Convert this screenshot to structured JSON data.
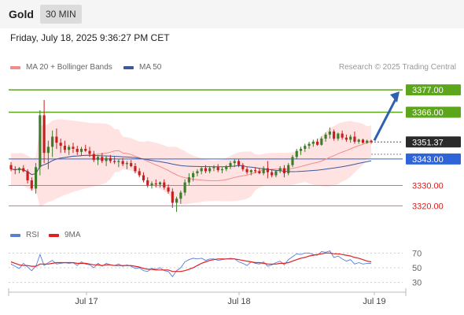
{
  "header": {
    "instrument": "Gold",
    "timeframe": "30 MIN"
  },
  "datetime": "Friday, July 18, 2025 9:36:27 PM CET",
  "credit": "Research © 2025 Trading Central",
  "legend": {
    "ma20": {
      "label": "MA 20 + Bollinger Bands",
      "color": "#f28b8b"
    },
    "ma50": {
      "label": "MA 50",
      "color": "#3a5a9c"
    },
    "rsi": {
      "label": "RSI",
      "color": "#5b7fd6"
    },
    "ma9": {
      "label": "9MA",
      "color": "#e02020"
    }
  },
  "colors": {
    "up": "#3b7d2a",
    "down": "#c81e1e",
    "band_fill": "#ffdede",
    "resistance": "#5ea51e",
    "support": "#e06d7f",
    "current": "#2a2a2a",
    "pivot": "#2f64d8",
    "arrow": "#2e62b0"
  },
  "chart_data": [
    {
      "type": "candlestick",
      "x_ticks": [
        "Jul 17",
        "Jul 18",
        "Jul 19"
      ],
      "ylim": [
        3312,
        3384
      ],
      "levels": [
        {
          "value": 3377.0,
          "label": "3377.00",
          "kind": "resistance"
        },
        {
          "value": 3366.0,
          "label": "3366.00",
          "kind": "resistance"
        },
        {
          "value": 3351.37,
          "label": "3351.37",
          "kind": "current"
        },
        {
          "value": 3343.0,
          "label": "3343.00",
          "kind": "pivot"
        },
        {
          "value": 3330.0,
          "label": "3330.00",
          "kind": "support"
        },
        {
          "value": 3320.0,
          "label": "3320.00",
          "kind": "support"
        }
      ],
      "arrow": {
        "from": 3351.37,
        "to": 3377.0
      },
      "candles": [
        [
          3340.0,
          3341.5,
          3337.0,
          3338.0
        ],
        [
          3338.0,
          3339.5,
          3335.5,
          3337.5
        ],
        [
          3337.5,
          3339.0,
          3336.0,
          3338.5
        ],
        [
          3338.5,
          3340.0,
          3336.5,
          3337.0
        ],
        [
          3337.0,
          3338.0,
          3331.0,
          3332.5
        ],
        [
          3332.5,
          3334.0,
          3327.5,
          3328.5
        ],
        [
          3328.5,
          3341.0,
          3326.0,
          3339.0
        ],
        [
          3339.0,
          3367.0,
          3335.0,
          3364.5
        ],
        [
          3364.5,
          3372.0,
          3341.0,
          3346.0
        ],
        [
          3346.0,
          3352.0,
          3338.0,
          3349.0
        ],
        [
          3349.0,
          3357.0,
          3344.0,
          3354.0
        ],
        [
          3354.0,
          3358.0,
          3348.0,
          3351.0
        ],
        [
          3351.0,
          3353.0,
          3346.0,
          3349.5
        ],
        [
          3349.5,
          3352.0,
          3346.0,
          3347.5
        ],
        [
          3347.5,
          3350.0,
          3345.0,
          3349.0
        ],
        [
          3349.0,
          3351.0,
          3346.0,
          3348.0
        ],
        [
          3348.0,
          3349.5,
          3345.0,
          3346.5
        ],
        [
          3346.5,
          3349.0,
          3344.5,
          3348.0
        ],
        [
          3348.0,
          3350.0,
          3346.5,
          3347.0
        ],
        [
          3347.0,
          3349.0,
          3344.0,
          3345.5
        ],
        [
          3345.5,
          3347.0,
          3341.5,
          3342.5
        ],
        [
          3342.5,
          3345.0,
          3340.0,
          3344.0
        ],
        [
          3344.0,
          3346.0,
          3341.0,
          3342.0
        ],
        [
          3342.0,
          3344.5,
          3339.5,
          3343.5
        ],
        [
          3343.5,
          3345.0,
          3341.0,
          3342.0
        ],
        [
          3342.0,
          3344.0,
          3340.5,
          3341.5
        ],
        [
          3341.5,
          3343.0,
          3339.0,
          3342.0
        ],
        [
          3342.0,
          3343.5,
          3339.5,
          3340.5
        ],
        [
          3340.5,
          3342.0,
          3338.0,
          3341.0
        ],
        [
          3341.0,
          3342.5,
          3339.0,
          3339.5
        ],
        [
          3339.5,
          3341.0,
          3336.0,
          3337.0
        ],
        [
          3337.0,
          3338.5,
          3334.0,
          3335.0
        ],
        [
          3335.0,
          3336.5,
          3331.5,
          3332.5
        ],
        [
          3332.5,
          3334.0,
          3329.0,
          3330.0
        ],
        [
          3330.0,
          3332.0,
          3328.5,
          3331.0
        ],
        [
          3331.0,
          3333.0,
          3329.0,
          3330.5
        ],
        [
          3330.5,
          3332.0,
          3329.0,
          3331.5
        ],
        [
          3331.5,
          3333.0,
          3328.0,
          3329.0
        ],
        [
          3329.0,
          3330.5,
          3326.0,
          3327.0
        ],
        [
          3327.0,
          3328.5,
          3319.0,
          3321.5
        ],
        [
          3321.5,
          3324.5,
          3317.0,
          3323.5
        ],
        [
          3323.5,
          3327.5,
          3321.0,
          3326.5
        ],
        [
          3326.5,
          3333.0,
          3325.0,
          3331.5
        ],
        [
          3331.5,
          3336.0,
          3330.0,
          3334.0
        ],
        [
          3334.0,
          3337.0,
          3332.0,
          3336.0
        ],
        [
          3336.0,
          3338.0,
          3334.5,
          3337.0
        ],
        [
          3337.0,
          3339.0,
          3335.5,
          3338.5
        ],
        [
          3338.5,
          3340.0,
          3336.0,
          3337.0
        ],
        [
          3337.0,
          3339.5,
          3336.0,
          3338.5
        ],
        [
          3338.5,
          3340.0,
          3337.0,
          3339.0
        ],
        [
          3339.0,
          3340.5,
          3336.5,
          3337.5
        ],
        [
          3337.5,
          3339.0,
          3336.0,
          3338.0
        ],
        [
          3338.0,
          3340.0,
          3337.0,
          3339.5
        ],
        [
          3339.5,
          3342.0,
          3338.0,
          3341.0
        ],
        [
          3341.0,
          3343.0,
          3339.0,
          3342.0
        ],
        [
          3342.0,
          3343.0,
          3339.0,
          3340.0
        ],
        [
          3340.0,
          3341.0,
          3337.0,
          3338.0
        ],
        [
          3338.0,
          3339.0,
          3335.5,
          3336.5
        ],
        [
          3336.5,
          3338.0,
          3335.0,
          3337.5
        ],
        [
          3337.5,
          3339.0,
          3336.0,
          3337.0
        ],
        [
          3337.0,
          3338.5,
          3335.5,
          3336.0
        ],
        [
          3336.0,
          3339.5,
          3335.0,
          3338.5
        ],
        [
          3338.5,
          3342.0,
          3333.5,
          3336.5
        ],
        [
          3336.5,
          3338.0,
          3334.0,
          3335.0
        ],
        [
          3335.0,
          3337.5,
          3334.0,
          3337.0
        ],
        [
          3337.0,
          3339.5,
          3336.0,
          3338.5
        ],
        [
          3338.5,
          3340.0,
          3334.0,
          3336.0
        ],
        [
          3336.0,
          3341.0,
          3335.0,
          3340.0
        ],
        [
          3340.0,
          3345.0,
          3339.0,
          3344.0
        ],
        [
          3344.0,
          3348.0,
          3343.0,
          3347.0
        ],
        [
          3347.0,
          3349.0,
          3345.0,
          3348.0
        ],
        [
          3348.0,
          3350.5,
          3346.5,
          3349.5
        ],
        [
          3349.5,
          3351.5,
          3348.0,
          3350.5
        ],
        [
          3350.5,
          3352.5,
          3349.0,
          3351.5
        ],
        [
          3351.5,
          3353.0,
          3349.5,
          3350.0
        ],
        [
          3350.0,
          3354.0,
          3349.5,
          3353.0
        ],
        [
          3353.0,
          3356.0,
          3351.5,
          3355.0
        ],
        [
          3355.0,
          3358.5,
          3353.0,
          3356.5
        ],
        [
          3356.5,
          3357.5,
          3352.0,
          3353.0
        ],
        [
          3353.0,
          3356.0,
          3352.0,
          3355.5
        ],
        [
          3355.5,
          3357.0,
          3352.5,
          3353.5
        ],
        [
          3353.5,
          3355.0,
          3351.5,
          3352.5
        ],
        [
          3352.5,
          3355.0,
          3351.0,
          3354.0
        ],
        [
          3354.0,
          3356.5,
          3350.5,
          3351.5
        ],
        [
          3351.5,
          3353.0,
          3350.5,
          3352.5
        ],
        [
          3352.5,
          3353.0,
          3350.5,
          3351.0
        ],
        [
          3351.0,
          3352.5,
          3350.5,
          3352.0
        ],
        [
          3352.0,
          3352.5,
          3350.5,
          3351.37
        ]
      ]
    },
    {
      "type": "line",
      "title": "",
      "series": [
        {
          "name": "RSI",
          "values": [
            55,
            52,
            49,
            56,
            51,
            46,
            52,
            68,
            53,
            57,
            60,
            55,
            56,
            57,
            56,
            57,
            53,
            58,
            55,
            54,
            50,
            56,
            52,
            56,
            54,
            53,
            55,
            52,
            54,
            52,
            49,
            50,
            46,
            45,
            49,
            48,
            50,
            46,
            45,
            38,
            46,
            50,
            58,
            61,
            63,
            62,
            63,
            60,
            62,
            62,
            60,
            61,
            62,
            63,
            62,
            58,
            56,
            53,
            58,
            56,
            55,
            58,
            52,
            54,
            57,
            59,
            54,
            61,
            65,
            69,
            68,
            70,
            70,
            68,
            67,
            72,
            71,
            73,
            64,
            66,
            62,
            59,
            61,
            55,
            57,
            55,
            56,
            56
          ]
        },
        {
          "name": "9MA",
          "values": [
            58,
            56,
            54,
            53,
            53,
            52,
            52,
            55,
            55,
            55,
            56,
            57,
            57,
            57,
            57,
            57,
            56,
            56,
            56,
            55,
            54,
            54,
            53,
            54,
            54,
            53,
            53,
            53,
            53,
            53,
            52,
            51,
            49,
            48,
            48,
            47,
            47,
            47,
            47,
            45,
            45,
            45,
            46,
            48,
            50,
            53,
            56,
            58,
            60,
            61,
            62,
            62,
            62,
            62,
            62,
            61,
            60,
            59,
            58,
            57,
            57,
            56,
            55,
            55,
            55,
            56,
            56,
            57,
            59,
            61,
            63,
            64,
            66,
            67,
            68,
            69,
            70,
            70,
            69,
            69,
            68,
            67,
            66,
            64,
            63,
            61,
            59,
            58
          ]
        }
      ],
      "y_ticks": [
        70,
        50,
        30
      ],
      "ylim": [
        20,
        80
      ]
    }
  ]
}
